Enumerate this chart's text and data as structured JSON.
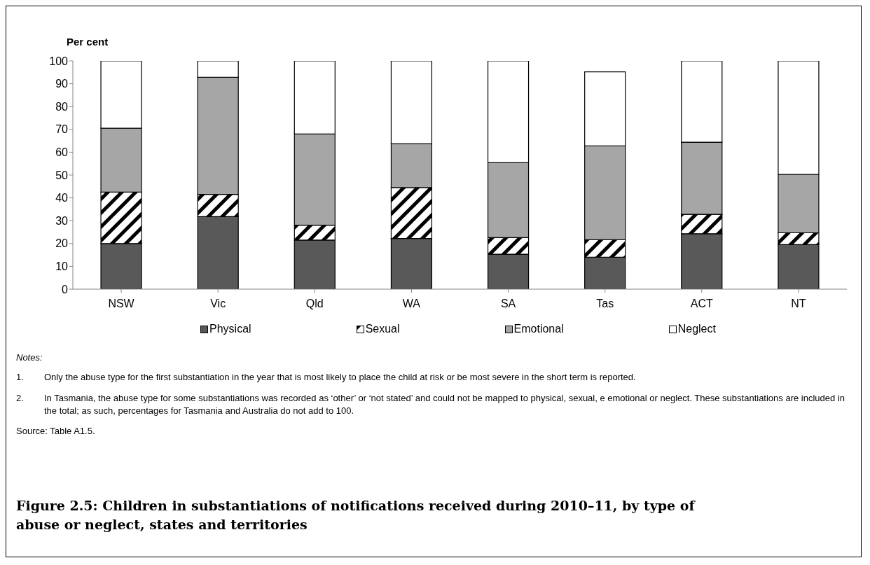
{
  "chart_data": {
    "type": "bar",
    "stacked": true,
    "title": "Figure 2.5: Children in substantiations of notifications received during 2010–11, by type of abuse or neglect, states and territories",
    "ylabel": "Per cent",
    "categories": [
      "NSW",
      "Vic",
      "Qld",
      "WA",
      "SA",
      "Tas",
      "ACT",
      "NT"
    ],
    "series": [
      {
        "name": "Physical",
        "color": "#595959",
        "values": [
          20,
          31.8,
          21.5,
          22.2,
          15.3,
          14.0,
          24.3,
          19.5
        ]
      },
      {
        "name": "Sexual",
        "color": "#000000",
        "values": [
          22.5,
          9.7,
          6.5,
          22.3,
          7.3,
          7.7,
          8.5,
          5.2
        ]
      },
      {
        "name": "Emotional",
        "color": "#a6a6a6",
        "values": [
          28,
          51.3,
          40,
          19.2,
          32.8,
          41.1,
          31.6,
          25.6
        ]
      },
      {
        "name": "Neglect",
        "color": "#ffffff",
        "values": [
          29.5,
          7.2,
          32,
          36.3,
          44.6,
          32.4,
          35.6,
          49.7
        ]
      }
    ],
    "ylim": [
      0,
      100
    ],
    "yticks": [
      0,
      10,
      20,
      30,
      40,
      50,
      60,
      70,
      80,
      90,
      100
    ],
    "grid": false,
    "legend": "bottom",
    "annotations": [
      "Notes:",
      "1.\tOnly the abuse type for the first substantiation in the year that is most likely to place the child at risk or be most severe in the short term is reported.",
      "2.\tIn Tasmania, the abuse type for some substantiations was recorded as ‘other’ or ‘not stated’ and could not be mapped to physical, sexual, e emotional or neglect. These substantiations are included in the total; as such, percentages for Tasmania and Australia do not add to 100.",
      "Source: Table A1.5."
    ]
  }
}
